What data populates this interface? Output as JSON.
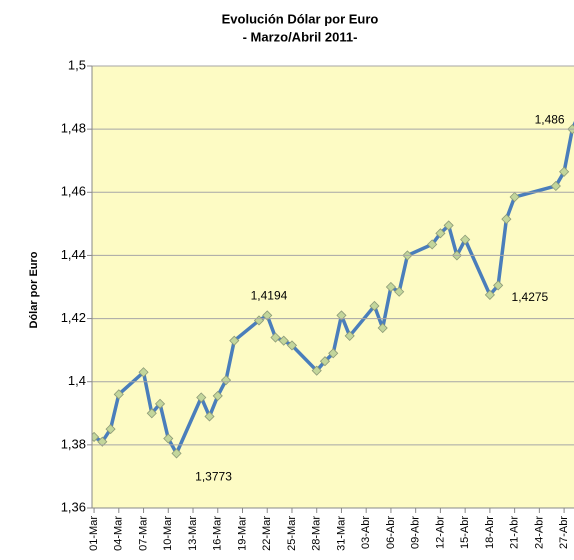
{
  "chart_data": {
    "type": "line",
    "title": "Evolución Dólar por Euro",
    "subtitle": "- Marzo/Abril 2011-",
    "y_label": "Dólar por Euro",
    "x": [
      0,
      1,
      2,
      3,
      6,
      7,
      8,
      9,
      10,
      13,
      14,
      15,
      16,
      17,
      20,
      21,
      22,
      23,
      24,
      27,
      28,
      29,
      30,
      31,
      34,
      35,
      36,
      37,
      38,
      41,
      42,
      43,
      44,
      45,
      48,
      49,
      50,
      51,
      56,
      57,
      58,
      59
    ],
    "values": [
      1.3825,
      1.381,
      1.385,
      1.396,
      1.403,
      1.39,
      1.393,
      1.382,
      1.3773,
      1.395,
      1.389,
      1.3955,
      1.4005,
      1.413,
      1.4194,
      1.421,
      1.414,
      1.413,
      1.4115,
      1.4035,
      1.4065,
      1.409,
      1.421,
      1.4145,
      1.424,
      1.417,
      1.43,
      1.4285,
      1.44,
      1.4435,
      1.447,
      1.4495,
      1.44,
      1.445,
      1.4275,
      1.4305,
      1.4515,
      1.4585,
      1.462,
      1.4665,
      1.48,
      1.486
    ],
    "value_labels": [
      null,
      null,
      null,
      null,
      null,
      null,
      null,
      null,
      "1,3773",
      null,
      null,
      null,
      null,
      null,
      "1,4194",
      null,
      null,
      null,
      null,
      null,
      null,
      null,
      null,
      null,
      null,
      null,
      null,
      null,
      null,
      null,
      null,
      null,
      null,
      null,
      "1,4275",
      null,
      null,
      null,
      null,
      null,
      null,
      "1,486"
    ],
    "color": "#4a7ebb",
    "marker_color": "#c3d69b",
    "xlim": [
      -0.25,
      58.2
    ],
    "xticks": [
      {
        "value": 0,
        "label": "01-Mar"
      },
      {
        "value": 3,
        "label": "04-Mar"
      },
      {
        "value": 6,
        "label": "07-Mar"
      },
      {
        "value": 9,
        "label": "10-Mar"
      },
      {
        "value": 12,
        "label": "13-Mar"
      },
      {
        "value": 15,
        "label": "16-Mar"
      },
      {
        "value": 18,
        "label": "19-Mar"
      },
      {
        "value": 21,
        "label": "22-Mar"
      },
      {
        "value": 24,
        "label": "25-Mar"
      },
      {
        "value": 27,
        "label": "28-Mar"
      },
      {
        "value": 30,
        "label": "31-Mar"
      },
      {
        "value": 33,
        "label": "03-Abr"
      },
      {
        "value": 36,
        "label": "06-Abr"
      },
      {
        "value": 39,
        "label": "09-Abr"
      },
      {
        "value": 42,
        "label": "12-Abr"
      },
      {
        "value": 45,
        "label": "15-Abr"
      },
      {
        "value": 48,
        "label": "18-Abr"
      },
      {
        "value": 51,
        "label": "21-Abr"
      },
      {
        "value": 54,
        "label": "24-Abr"
      },
      {
        "value": 57,
        "label": "27-Abr"
      }
    ],
    "ylim": [
      1.36,
      1.5
    ],
    "yticks": [
      {
        "value": 1.36,
        "label": "1,36"
      },
      {
        "value": 1.38,
        "label": "1,38"
      },
      {
        "value": 1.4,
        "label": "1,4"
      },
      {
        "value": 1.42,
        "label": "1,42"
      },
      {
        "value": 1.44,
        "label": "1,44"
      },
      {
        "value": 1.46,
        "label": "1,46"
      },
      {
        "value": 1.48,
        "label": "1,48"
      },
      {
        "value": 1.5,
        "label": "1,5"
      }
    ],
    "grid": true
  }
}
